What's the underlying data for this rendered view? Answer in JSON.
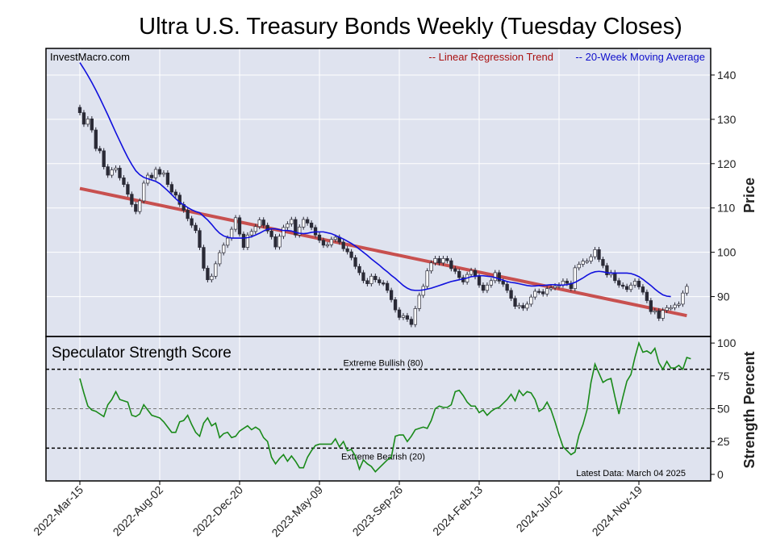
{
  "title": "Ultra U.S. Treasury Bonds Weekly (Tuesday Closes)",
  "watermark": "InvestMacro.com",
  "colors": {
    "panel_bg": "#dfe3ef",
    "regression": "#c8504f",
    "moving_average": "#1010dd",
    "strength": "#1a8a1a",
    "legend_regression": "#aa1111",
    "legend_ma": "#1010cc",
    "candle_up": "#ffffff",
    "candle_down": "#2a2a36"
  },
  "chart_data": [
    {
      "type": "candlestick",
      "panel": "price",
      "legend": {
        "regression": "-- Linear Regression Trend",
        "moving_average": "-- 20-Week Moving Average",
        "placement": "top-right"
      },
      "ylabel": "Price",
      "ylim": [
        81,
        146
      ],
      "yticks": [
        90,
        100,
        110,
        120,
        130,
        140
      ],
      "xticks": [
        "2022-Mar-15",
        "2022-Aug-02",
        "2022-Dec-20",
        "2023-May-09",
        "2023-Sep-26",
        "2024-Feb-13",
        "2024-Jul-02",
        "2024-Nov-19"
      ],
      "xtick_index": [
        0,
        20,
        40,
        60,
        80,
        100,
        120,
        140
      ],
      "grid": true,
      "closes": [
        131.5,
        128.9,
        130.1,
        127.6,
        123.4,
        122.9,
        119.3,
        117.4,
        118.6,
        119.0,
        116.8,
        115.3,
        113.1,
        110.8,
        109.2,
        111.6,
        115.6,
        117.4,
        116.8,
        118.7,
        117.6,
        117.9,
        115.3,
        113.6,
        112.9,
        110.8,
        109.5,
        107.6,
        106.1,
        104.9,
        101.1,
        96.4,
        93.8,
        94.6,
        97.4,
        99.9,
        101.6,
        103.2,
        105.2,
        107.8,
        104.1,
        101.1,
        103.9,
        104.7,
        105.8,
        107.3,
        106.1,
        104.8,
        103.5,
        101.2,
        103.6,
        105.6,
        106.4,
        107.4,
        103.9,
        105.7,
        107.4,
        106.6,
        105.6,
        103.9,
        102.7,
        101.6,
        101.7,
        102.9,
        103.4,
        102.3,
        100.8,
        100.1,
        98.8,
        96.8,
        95.4,
        93.6,
        92.9,
        94.6,
        93.8,
        93.1,
        93.0,
        91.4,
        89.3,
        87.0,
        85.3,
        85.7,
        84.9,
        83.7,
        87.3,
        90.3,
        92.3,
        95.8,
        97.6,
        98.6,
        97.6,
        98.6,
        98.1,
        96.3,
        95.7,
        94.3,
        93.3,
        95.0,
        95.9,
        94.5,
        92.6,
        91.4,
        92.6,
        93.6,
        95.4,
        93.5,
        92.8,
        91.4,
        89.6,
        87.8,
        88.0,
        87.4,
        88.3,
        89.9,
        91.2,
        91.1,
        90.6,
        91.8,
        92.0,
        92.4,
        92.6,
        93.5,
        93.0,
        91.8,
        96.5,
        97.3,
        98.0,
        98.0,
        99.0,
        100.6,
        98.4,
        97.0,
        94.9,
        95.4,
        93.6,
        92.6,
        92.3,
        91.6,
        92.6,
        93.5,
        92.2,
        91.0,
        89.1,
        86.6,
        86.8,
        85.1,
        86.9,
        87.5,
        87.5,
        88.1,
        88.3,
        90.8,
        92.3
      ],
      "regression_start": 114.4,
      "regression_end": 85.7,
      "moving_average": [
        142.8,
        141.4,
        139.9,
        138.3,
        136.6,
        134.8,
        132.9,
        131.0,
        129.0,
        127.0,
        125.1,
        123.2,
        121.4,
        119.8,
        118.4,
        117.5,
        116.9,
        116.6,
        116.3,
        116.0,
        115.5,
        114.7,
        113.9,
        113.0,
        112.1,
        111.3,
        110.7,
        110.1,
        109.6,
        109.2,
        108.9,
        108.1,
        107.3,
        106.3,
        105.2,
        104.3,
        103.7,
        103.4,
        103.2,
        103.2,
        103.2,
        103.2,
        103.3,
        103.5,
        103.9,
        104.3,
        104.8,
        105.2,
        105.3,
        105.3,
        105.1,
        104.9,
        104.9,
        104.8,
        104.5,
        104.3,
        104.2,
        104.3,
        104.5,
        104.6,
        104.6,
        104.6,
        104.4,
        104.2,
        103.8,
        103.4,
        103.0,
        102.5,
        102.0,
        101.4,
        100.7,
        100.0,
        99.3,
        98.5,
        97.8,
        97.1,
        96.3,
        95.6,
        94.8,
        94.1,
        93.3,
        92.5,
        91.9,
        91.5,
        91.4,
        91.4,
        91.5,
        91.7,
        91.9,
        92.2,
        92.5,
        92.8,
        93.1,
        93.4,
        93.6,
        93.8,
        94.0,
        94.2,
        94.5,
        94.6,
        94.7,
        94.7,
        94.6,
        94.5,
        94.3,
        94.0,
        93.7,
        93.4,
        93.2,
        93.1,
        92.9,
        92.7,
        92.5,
        92.4,
        92.4,
        92.5,
        92.5,
        92.6,
        92.7,
        92.7,
        92.6,
        92.6,
        92.7,
        92.9,
        93.2,
        93.7,
        94.2,
        94.8,
        95.3,
        95.6,
        95.7,
        95.6,
        95.4,
        95.3,
        95.3,
        95.3,
        95.3,
        95.3,
        95.2,
        94.9,
        94.5,
        93.9,
        93.2,
        92.5,
        91.7,
        91.0,
        90.4,
        90.1,
        90.0
      ],
      "last_data": "Latest Data: March 04 2025"
    },
    {
      "type": "line",
      "panel": "strength",
      "title": "Speculator Strength Score",
      "ylabel": "Strength Percent",
      "ylim": [
        -5,
        105
      ],
      "yticks": [
        0,
        25,
        50,
        75,
        100
      ],
      "reference_lines": [
        {
          "value": 80,
          "label": "Extreme Bullish (80)"
        },
        {
          "value": 50,
          "label": ""
        },
        {
          "value": 20,
          "label": "Extreme Bearish (20)"
        }
      ],
      "values": [
        73,
        62,
        52,
        49,
        48,
        46,
        44,
        53,
        57,
        63,
        57,
        56,
        55,
        45,
        44,
        46,
        53,
        49,
        45,
        44,
        43,
        40,
        36,
        32,
        32,
        40,
        41,
        45,
        38,
        32,
        29,
        39,
        43,
        37,
        39,
        28,
        31,
        32,
        28,
        29,
        33,
        35,
        37,
        34,
        36,
        34,
        28,
        25,
        13,
        8,
        12,
        15,
        10,
        14,
        10,
        5,
        5,
        13,
        18,
        22,
        23,
        23,
        23,
        23,
        27,
        21,
        25,
        18,
        19,
        14,
        4,
        11,
        8,
        6,
        2,
        5,
        8,
        11,
        13,
        29,
        30,
        30,
        25,
        29,
        34,
        35,
        36,
        35,
        41,
        50,
        52,
        51,
        51,
        53,
        63,
        64,
        60,
        55,
        52,
        52,
        47,
        49,
        45,
        48,
        50,
        51,
        54,
        57,
        61,
        56,
        64,
        60,
        63,
        62,
        57,
        48,
        50,
        55,
        49,
        40,
        30,
        21,
        18,
        15,
        17,
        30,
        38,
        49,
        70,
        84,
        77,
        70,
        72,
        73,
        59,
        46,
        59,
        71,
        76,
        89,
        100,
        93,
        94,
        92,
        96,
        85,
        80,
        86,
        81,
        81,
        83,
        80,
        89,
        88
      ]
    }
  ]
}
